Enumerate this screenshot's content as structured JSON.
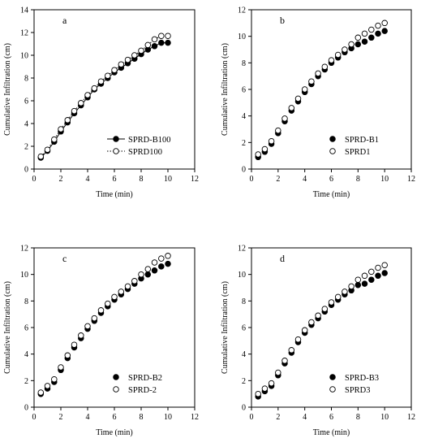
{
  "chart_data": [
    {
      "type": "scatter",
      "panel_label": "a",
      "xlabel": "Time (min)",
      "ylabel": "Cumulative Infiltration  (cm)",
      "xlim": [
        0,
        12
      ],
      "ylim": [
        0,
        14
      ],
      "xticks": [
        0,
        2,
        4,
        6,
        8,
        10,
        12
      ],
      "yticks": [
        0,
        2,
        4,
        6,
        8,
        10,
        12,
        14
      ],
      "legend_position": "bottom-right",
      "x": [
        0.5,
        1,
        1.5,
        2,
        2.5,
        3,
        3.5,
        4,
        4.5,
        5,
        5.5,
        6,
        6.5,
        7,
        7.5,
        8,
        8.5,
        9,
        9.5,
        10
      ],
      "series": [
        {
          "name": "SPRD-B100",
          "marker": "filled",
          "line": "solid",
          "values": [
            1.0,
            1.6,
            2.4,
            3.3,
            4.1,
            4.9,
            5.6,
            6.3,
            7.0,
            7.5,
            8.0,
            8.5,
            8.9,
            9.3,
            9.7,
            10.1,
            10.5,
            10.8,
            11.1,
            11.1
          ]
        },
        {
          "name": "SPRD100",
          "marker": "open",
          "line": "dotted",
          "values": [
            1.1,
            1.7,
            2.6,
            3.5,
            4.3,
            5.1,
            5.8,
            6.5,
            7.1,
            7.7,
            8.2,
            8.7,
            9.2,
            9.6,
            10.0,
            10.4,
            10.9,
            11.4,
            11.7,
            11.7
          ]
        }
      ]
    },
    {
      "type": "scatter",
      "panel_label": "b",
      "xlabel": "Time (min)",
      "ylabel": "Cumulative Infiltration  (cm)",
      "xlim": [
        0,
        12
      ],
      "ylim": [
        0,
        12
      ],
      "xticks": [
        0,
        2,
        4,
        6,
        8,
        10,
        12
      ],
      "yticks": [
        0,
        2,
        4,
        6,
        8,
        10,
        12
      ],
      "legend_position": "bottom-right",
      "x": [
        0.5,
        1,
        1.5,
        2,
        2.5,
        3,
        3.5,
        4,
        4.5,
        5,
        5.5,
        6,
        6.5,
        7,
        7.5,
        8,
        8.5,
        9,
        9.5,
        10
      ],
      "series": [
        {
          "name": "SPRD-B1",
          "marker": "filled",
          "values": [
            0.9,
            1.3,
            1.9,
            2.7,
            3.6,
            4.4,
            5.1,
            5.8,
            6.4,
            7.0,
            7.5,
            8.0,
            8.4,
            8.8,
            9.1,
            9.4,
            9.6,
            9.9,
            10.2,
            10.4
          ]
        },
        {
          "name": "SPRD1",
          "marker": "open",
          "values": [
            1.1,
            1.5,
            2.1,
            2.9,
            3.8,
            4.6,
            5.3,
            6.0,
            6.6,
            7.2,
            7.7,
            8.2,
            8.6,
            9.0,
            9.4,
            9.9,
            10.2,
            10.5,
            10.8,
            11.0
          ]
        }
      ]
    },
    {
      "type": "scatter",
      "panel_label": "c",
      "xlabel": "Time (min)",
      "ylabel": "Cumulative Infiltration  (cm)",
      "xlim": [
        0,
        12
      ],
      "ylim": [
        0,
        12
      ],
      "xticks": [
        0,
        2,
        4,
        6,
        8,
        10,
        12
      ],
      "yticks": [
        0,
        2,
        4,
        6,
        8,
        10,
        12
      ],
      "legend_position": "bottom-right",
      "x": [
        0.5,
        1,
        1.5,
        2,
        2.5,
        3,
        3.5,
        4,
        4.5,
        5,
        5.5,
        6,
        6.5,
        7,
        7.5,
        8,
        8.5,
        9,
        9.5,
        10
      ],
      "series": [
        {
          "name": "SPRD-B2",
          "marker": "filled",
          "values": [
            1.0,
            1.4,
            1.9,
            2.8,
            3.7,
            4.5,
            5.2,
            5.9,
            6.5,
            7.1,
            7.6,
            8.1,
            8.5,
            8.9,
            9.3,
            9.7,
            10.0,
            10.3,
            10.6,
            10.8
          ]
        },
        {
          "name": "SPRD-2",
          "marker": "open",
          "values": [
            1.1,
            1.6,
            2.1,
            3.0,
            3.9,
            4.7,
            5.4,
            6.1,
            6.7,
            7.3,
            7.8,
            8.3,
            8.7,
            9.1,
            9.5,
            10.0,
            10.4,
            10.9,
            11.2,
            11.4
          ]
        }
      ]
    },
    {
      "type": "scatter",
      "panel_label": "d",
      "xlabel": "Time (min)",
      "ylabel": "Cumulative Infiltration  (cm)",
      "xlim": [
        0,
        12
      ],
      "ylim": [
        0,
        12
      ],
      "xticks": [
        0,
        2,
        4,
        6,
        8,
        10,
        12
      ],
      "yticks": [
        0,
        2,
        4,
        6,
        8,
        10,
        12
      ],
      "legend_position": "bottom-right",
      "x": [
        0.5,
        1,
        1.5,
        2,
        2.5,
        3,
        3.5,
        4,
        4.5,
        5,
        5.5,
        6,
        6.5,
        7,
        7.5,
        8,
        8.5,
        9,
        9.5,
        10
      ],
      "series": [
        {
          "name": "SPRD-B3",
          "marker": "filled",
          "values": [
            0.8,
            1.2,
            1.6,
            2.4,
            3.3,
            4.1,
            4.9,
            5.6,
            6.2,
            6.7,
            7.2,
            7.7,
            8.1,
            8.5,
            8.8,
            9.2,
            9.3,
            9.6,
            9.9,
            10.1
          ]
        },
        {
          "name": "SPRD3",
          "marker": "open",
          "values": [
            1.0,
            1.4,
            1.8,
            2.6,
            3.5,
            4.3,
            5.1,
            5.8,
            6.4,
            6.9,
            7.4,
            7.9,
            8.3,
            8.7,
            9.1,
            9.6,
            9.9,
            10.2,
            10.5,
            10.7
          ]
        }
      ]
    }
  ]
}
